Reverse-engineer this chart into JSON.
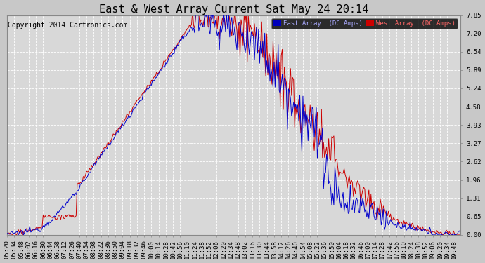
{
  "title": "East & West Array Current Sat May 24 20:14",
  "copyright": "Copyright 2014 Cartronics.com",
  "east_label": "East Array  (DC Amps)",
  "west_label": "West Array  (DC Amps)",
  "east_color": "#0000cc",
  "west_color": "#cc0000",
  "yticks": [
    0.0,
    0.65,
    1.31,
    1.96,
    2.62,
    3.27,
    3.93,
    4.58,
    5.24,
    5.89,
    6.54,
    7.2,
    7.85
  ],
  "ymax": 7.85,
  "ymin": 0.0,
  "background_color": "#c8c8c8",
  "plot_bg": "#d8d8d8",
  "grid_color": "#ffffff",
  "title_fontsize": 11,
  "copyright_fontsize": 7,
  "tick_fontsize": 6.5
}
